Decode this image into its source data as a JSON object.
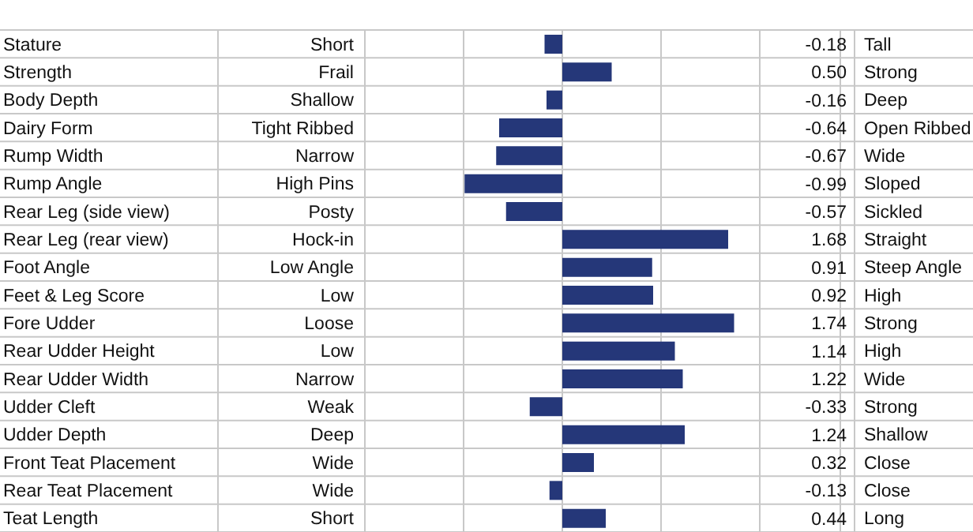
{
  "chart_data": {
    "type": "bar",
    "orientation": "horizontal",
    "color": "#253779",
    "categories": [
      "Stature",
      "Strength",
      "Body Depth",
      "Dairy Form",
      "Rump Width",
      "Rump Angle",
      "Rear Leg (side view)",
      "Rear Leg (rear view)",
      "Foot Angle",
      "Feet & Leg Score",
      "Fore Udder",
      "Rear Udder Height",
      "Rear Udder Width",
      "Udder Cleft",
      "Udder Depth",
      "Front Teat Placement",
      "Rear Teat Placement",
      "Teat Length"
    ],
    "values": [
      -0.18,
      0.5,
      -0.16,
      -0.64,
      -0.67,
      -0.99,
      -0.57,
      1.68,
      0.91,
      0.92,
      1.74,
      1.14,
      1.22,
      -0.33,
      1.24,
      0.32,
      -0.13,
      0.44
    ],
    "value_labels": [
      "-0.18",
      "0.50",
      "-0.16",
      "-0.64",
      "-0.67",
      "-0.99",
      "-0.57",
      "1.68",
      "0.91",
      "0.92",
      "1.74",
      "1.14",
      "1.22",
      "-0.33",
      "1.24",
      "0.32",
      "-0.13",
      "0.44"
    ],
    "xlim": [
      -2,
      2
    ],
    "xticks": [
      {
        "value": -2,
        "label": null
      },
      {
        "value": -1,
        "label": null
      },
      {
        "value": 0,
        "label": null
      },
      {
        "value": 1,
        "label": null
      },
      {
        "value": 2,
        "label": null
      }
    ],
    "tick_labels": "y",
    "grid": true,
    "annotations": [
      "Short",
      "Tall",
      "Frail",
      "Strong",
      "Shallow",
      "Deep",
      "Tight Ribbed",
      "Open Ribbed",
      "Narrow",
      "Wide",
      "High Pins",
      "Sloped",
      "Posty",
      "Sickled",
      "Hock-in",
      "Straight",
      "Low Angle",
      "Steep Angle",
      "Low",
      "High",
      "Loose",
      "Strong",
      "Low",
      "High",
      "Narrow",
      "Wide",
      "Weak",
      "Strong",
      "Deep",
      "Shallow",
      "Wide",
      "Close",
      "Wide",
      "Close",
      "Short",
      "Long"
    ]
  }
}
